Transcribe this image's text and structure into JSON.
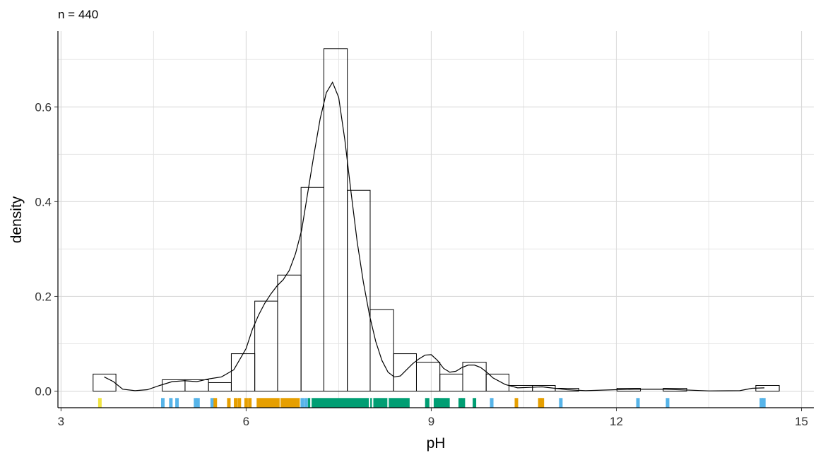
{
  "chart_data": {
    "type": "histogram",
    "subtitle": "n = 440",
    "xlabel": "pH",
    "ylabel": "density",
    "xlim": [
      2.95,
      15.2
    ],
    "ylim": [
      -0.035,
      0.76
    ],
    "x_ticks": [
      3,
      6,
      9,
      12,
      15
    ],
    "x_tick_labels": [
      "3",
      "6",
      "9",
      "12",
      "15"
    ],
    "y_ticks": [
      0.0,
      0.2,
      0.4,
      0.6
    ],
    "y_tick_labels": [
      "0.0",
      "0.2",
      "0.4",
      "0.6"
    ],
    "grid": true,
    "histogram": {
      "bin_width": 0.375,
      "bins": [
        {
          "x0": 3.52,
          "x1": 3.89,
          "density": 0.036
        },
        {
          "x0": 4.64,
          "x1": 5.01,
          "density": 0.024
        },
        {
          "x0": 5.01,
          "x1": 5.39,
          "density": 0.024
        },
        {
          "x0": 5.39,
          "x1": 5.76,
          "density": 0.018
        },
        {
          "x0": 5.76,
          "x1": 6.14,
          "density": 0.079
        },
        {
          "x0": 6.14,
          "x1": 6.51,
          "density": 0.19
        },
        {
          "x0": 6.51,
          "x1": 6.89,
          "density": 0.245
        },
        {
          "x0": 6.89,
          "x1": 7.26,
          "density": 0.43
        },
        {
          "x0": 7.26,
          "x1": 7.64,
          "density": 0.723
        },
        {
          "x0": 7.64,
          "x1": 8.01,
          "density": 0.424
        },
        {
          "x0": 8.01,
          "x1": 8.39,
          "density": 0.172
        },
        {
          "x0": 8.39,
          "x1": 8.76,
          "density": 0.079
        },
        {
          "x0": 8.76,
          "x1": 9.14,
          "density": 0.061
        },
        {
          "x0": 9.14,
          "x1": 9.51,
          "density": 0.036
        },
        {
          "x0": 9.51,
          "x1": 9.89,
          "density": 0.061
        },
        {
          "x0": 9.89,
          "x1": 10.26,
          "density": 0.036
        },
        {
          "x0": 10.26,
          "x1": 10.64,
          "density": 0.012
        },
        {
          "x0": 10.64,
          "x1": 11.01,
          "density": 0.012
        },
        {
          "x0": 11.01,
          "x1": 11.39,
          "density": 0.006
        },
        {
          "x0": 12.01,
          "x1": 12.39,
          "density": 0.006
        },
        {
          "x0": 12.76,
          "x1": 13.14,
          "density": 0.006
        },
        {
          "x0": 14.26,
          "x1": 14.64,
          "density": 0.012
        }
      ]
    },
    "density_curve": {
      "x": [
        3.7,
        3.85,
        4.0,
        4.2,
        4.4,
        4.6,
        4.8,
        5.0,
        5.2,
        5.4,
        5.6,
        5.8,
        6.0,
        6.1,
        6.2,
        6.3,
        6.4,
        6.5,
        6.6,
        6.7,
        6.8,
        6.9,
        7.0,
        7.1,
        7.2,
        7.3,
        7.4,
        7.5,
        7.6,
        7.7,
        7.8,
        7.9,
        8.0,
        8.1,
        8.2,
        8.3,
        8.4,
        8.5,
        8.6,
        8.7,
        8.8,
        8.9,
        9.0,
        9.1,
        9.2,
        9.3,
        9.4,
        9.5,
        9.6,
        9.7,
        9.8,
        9.9,
        10.0,
        10.2,
        10.4,
        10.6,
        10.8,
        11.0,
        11.2,
        11.5,
        12.0,
        12.3,
        12.5,
        12.8,
        13.0,
        13.5,
        14.0,
        14.2,
        14.4
      ],
      "y": [
        0.03,
        0.02,
        0.004,
        0.001,
        0.003,
        0.012,
        0.02,
        0.022,
        0.02,
        0.026,
        0.03,
        0.045,
        0.09,
        0.13,
        0.16,
        0.185,
        0.205,
        0.222,
        0.235,
        0.255,
        0.29,
        0.34,
        0.42,
        0.5,
        0.575,
        0.63,
        0.652,
        0.62,
        0.53,
        0.42,
        0.315,
        0.23,
        0.16,
        0.105,
        0.065,
        0.04,
        0.03,
        0.032,
        0.045,
        0.058,
        0.068,
        0.076,
        0.077,
        0.065,
        0.048,
        0.04,
        0.042,
        0.05,
        0.055,
        0.055,
        0.05,
        0.04,
        0.028,
        0.014,
        0.007,
        0.008,
        0.009,
        0.006,
        0.003,
        0.001,
        0.003,
        0.004,
        0.004,
        0.004,
        0.003,
        0.0005,
        0.001,
        0.006,
        0.007
      ]
    },
    "rug": {
      "y_position": -0.025,
      "colors": {
        "yellow": "#F0E442",
        "blue": "#56B4E9",
        "orange": "#E69F00",
        "green": "#009E73"
      },
      "marks": [
        {
          "x": 3.63,
          "color": "yellow"
        },
        {
          "x": 4.65,
          "color": "blue"
        },
        {
          "x": 4.78,
          "color": "blue"
        },
        {
          "x": 4.88,
          "color": "blue"
        },
        {
          "x": 5.18,
          "color": "blue"
        },
        {
          "x": 5.22,
          "color": "blue"
        },
        {
          "x": 5.45,
          "color": "blue"
        },
        {
          "x": 5.5,
          "color": "orange"
        },
        {
          "x": 5.72,
          "color": "orange"
        },
        {
          "x": 5.83,
          "color": "orange"
        },
        {
          "x": 5.89,
          "color": "orange"
        },
        {
          "x": 6.0,
          "color": "orange"
        },
        {
          "x": 6.06,
          "color": "orange"
        },
        {
          "x": 6.91,
          "color": "blue"
        },
        {
          "x": 6.97,
          "color": "blue"
        },
        {
          "x": 9.1,
          "color": "green"
        },
        {
          "x": 9.47,
          "color": "green"
        },
        {
          "x": 9.52,
          "color": "green"
        },
        {
          "x": 9.7,
          "color": "green"
        },
        {
          "x": 9.98,
          "color": "blue"
        },
        {
          "x": 10.38,
          "color": "orange"
        },
        {
          "x": 10.76,
          "color": "orange"
        },
        {
          "x": 10.8,
          "color": "orange"
        },
        {
          "x": 11.1,
          "color": "blue"
        },
        {
          "x": 12.35,
          "color": "blue"
        },
        {
          "x": 12.83,
          "color": "blue"
        },
        {
          "x": 14.35,
          "color": "blue"
        },
        {
          "x": 14.39,
          "color": "blue"
        }
      ],
      "ranges": [
        {
          "x0": 6.17,
          "x1": 6.82,
          "color": "orange"
        },
        {
          "x0": 6.82,
          "x1": 6.87,
          "color": "orange"
        },
        {
          "x0": 7.0,
          "x1": 8.65,
          "color": "green"
        },
        {
          "x0": 8.9,
          "x1": 8.97,
          "color": "green"
        },
        {
          "x0": 9.04,
          "x1": 9.3,
          "color": "green"
        }
      ]
    }
  }
}
